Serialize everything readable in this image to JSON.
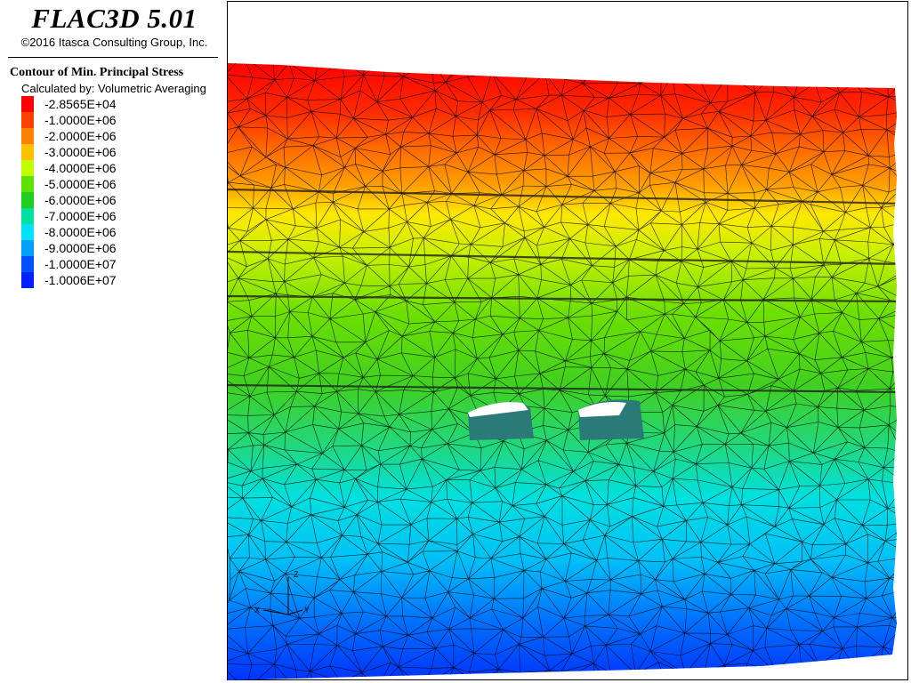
{
  "header": {
    "app_title": "FLAC3D 5.01",
    "copyright": "©2016 Itasca Consulting Group, Inc."
  },
  "legend": {
    "title": "Contour of Min. Principal Stress",
    "method": "Calculated by: Volumetric Averaging",
    "entries": [
      {
        "label": "-2.8565E+04",
        "color": "#ff0000"
      },
      {
        "label": "-1.0000E+06",
        "color": "#ff4000"
      },
      {
        "label": "-2.0000E+06",
        "color": "#ff8000"
      },
      {
        "label": "-3.0000E+06",
        "color": "#ffc000"
      },
      {
        "label": "-4.0000E+06",
        "color": "#c0ff00"
      },
      {
        "label": "-5.0000E+06",
        "color": "#60e000"
      },
      {
        "label": "-6.0000E+06",
        "color": "#20d020"
      },
      {
        "label": "-7.0000E+06",
        "color": "#00e0a0"
      },
      {
        "label": "-8.0000E+06",
        "color": "#00e0ff"
      },
      {
        "label": "-9.0000E+06",
        "color": "#00a0ff"
      },
      {
        "label": "-1.0000E+07",
        "color": "#0050ff"
      },
      {
        "label": "-1.0006E+07",
        "color": "#0020ff"
      }
    ]
  },
  "axes_triad": {
    "x_label": "X",
    "y_label": "Y",
    "z_label": "Z"
  },
  "colors": {
    "mesh_line": "#000000",
    "opening_fill": "#ffffff",
    "opening_floor": "#205a5a"
  }
}
